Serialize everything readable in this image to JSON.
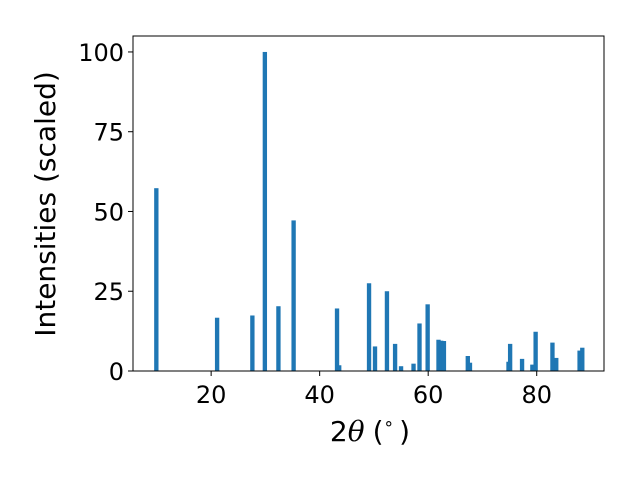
{
  "chart_data": {
    "type": "bar",
    "xlabel_prefix": "2",
    "xlabel_symbol": "θ",
    "xlabel_unit": "(",
    "xlabel_degree": "∘",
    "xlabel_close": ")",
    "ylabel": "Intensities (scaled)",
    "xlim": [
      5.6,
      92.4
    ],
    "ylim": [
      0,
      105
    ],
    "xticks": [
      20,
      40,
      60,
      80
    ],
    "yticks": [
      0,
      25,
      50,
      75,
      100
    ],
    "bar_width": 0.8,
    "bar_color": "#1f77b4",
    "grid": false,
    "x": [
      9.9,
      21.1,
      27.6,
      29.9,
      32.4,
      35.2,
      43.2,
      43.6,
      49.1,
      50.2,
      52.4,
      53.9,
      55.0,
      57.3,
      58.4,
      59.9,
      61.9,
      62.4,
      62.9,
      67.3,
      67.7,
      74.8,
      75.1,
      77.3,
      79.2,
      79.8,
      82.9,
      83.6,
      87.9,
      88.4
    ],
    "values": [
      57.3,
      16.7,
      17.4,
      100.0,
      20.3,
      47.2,
      19.6,
      1.8,
      27.5,
      7.7,
      25.0,
      8.5,
      1.5,
      2.3,
      14.9,
      20.9,
      9.8,
      9.5,
      9.4,
      4.7,
      2.6,
      2.9,
      8.5,
      3.8,
      2.0,
      12.3,
      8.9,
      4.1,
      6.4,
      7.3
    ]
  }
}
